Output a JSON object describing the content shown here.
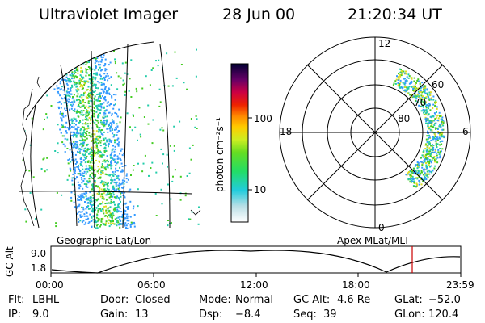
{
  "header": {
    "instrument": "Ultraviolet Imager",
    "date": "28 Jun 00",
    "time": "21:20:34 UT"
  },
  "panels": {
    "geographic_label": "Geographic Lat/Lon",
    "apex_label": "Apex MLat/MLT"
  },
  "colorbar": {
    "unit_label": "photon cm⁻²s⁻¹",
    "tick_100": "100",
    "tick_10": "10"
  },
  "polar": {
    "mlt_12": "12",
    "mlt_18": "18",
    "mlt_6": "6",
    "mlt_0": "0",
    "lat_60": "60",
    "lat_70": "70",
    "lat_80": "80"
  },
  "altitude_plot": {
    "label": "GC Alt",
    "ytick_top": "9.0",
    "ytick_bottom": "1.8",
    "xticks": [
      "00:00",
      "06:00",
      "12:00",
      "18:00",
      "23:59"
    ],
    "marker_color": "#cc0000"
  },
  "footer": {
    "filter_key": "Flt:",
    "filter_value": "LBHL",
    "door_key": "Door:",
    "door_value": "Closed",
    "mode_key": "Mode:",
    "mode_value": "Normal",
    "gcalt_key": "GC Alt:",
    "gcalt_value": "4.6 Re",
    "glat_key": "GLat:",
    "glat_value": "−52.0",
    "ip_key": "IP:",
    "ip_value": "9.0",
    "gain_key": "Gain:",
    "gain_value": "13",
    "dsp_key": "Dsp:",
    "dsp_value": "−8.4",
    "seq_key": "Seq:",
    "seq_value": "39",
    "glon_key": "GLon:",
    "glon_value": "120.4"
  },
  "colors": {
    "aurora_green": "#44cc22",
    "aurora_yellow": "#dddd22",
    "aurora_cyan": "#22ccaa",
    "aurora_blue": "#3399ff"
  }
}
